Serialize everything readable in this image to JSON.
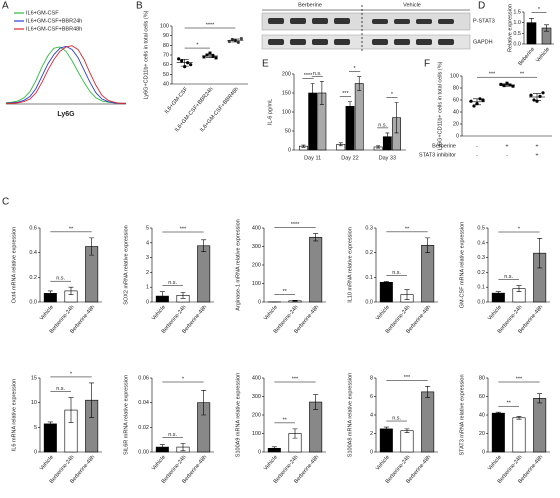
{
  "chart_data": [
    {
      "type": "line",
      "panel": "A",
      "x_label": "Ly6G",
      "x": [
        0,
        1,
        2,
        3,
        4,
        5,
        6,
        7,
        8,
        9,
        10,
        11,
        12,
        13,
        14,
        15,
        16,
        17,
        18,
        19,
        20
      ],
      "xlim": [
        0,
        20
      ],
      "ylim": [
        0,
        100
      ],
      "series": [
        {
          "name": "IL6+GM-CSF",
          "color": "#2fbf3a",
          "values": [
            2,
            3,
            5,
            10,
            20,
            38,
            60,
            78,
            90,
            92,
            85,
            70,
            52,
            35,
            20,
            10,
            5,
            3,
            2,
            1,
            1
          ]
        },
        {
          "name": "IL6+GM-CSF+BBR24h",
          "color": "#2a3fd8",
          "values": [
            1,
            2,
            3,
            6,
            12,
            25,
            45,
            65,
            80,
            90,
            93,
            88,
            75,
            55,
            35,
            18,
            8,
            4,
            2,
            1,
            1
          ]
        },
        {
          "name": "IL6+GM-CSF+BBR48h",
          "color": "#e0262b",
          "values": [
            1,
            1,
            2,
            4,
            8,
            18,
            35,
            55,
            72,
            85,
            92,
            94,
            88,
            72,
            50,
            30,
            14,
            6,
            3,
            1,
            1
          ]
        }
      ]
    },
    {
      "type": "dot",
      "panel": "B",
      "y_label": "Ly6G+CD11b+ cells in total cells (%)",
      "categories": [
        "IL6+GM-CSF",
        "IL6+GM-CSF+BBR24h",
        "IL6+GM-CSF+BBR48h"
      ],
      "points": [
        [
          66,
          64,
          58,
          62,
          60
        ],
        [
          68,
          70,
          72,
          69,
          67
        ],
        [
          84,
          86,
          85,
          83,
          87
        ]
      ],
      "means": [
        62,
        69,
        85
      ],
      "errors": [
        3.5,
        1.8,
        1.5
      ],
      "ylim": [
        40,
        100
      ],
      "yticks": [
        40,
        50,
        60,
        70,
        80,
        90,
        100
      ],
      "annotations": [
        "*",
        "****"
      ]
    },
    {
      "type": "bar",
      "panel": "D",
      "y_label": "Relative expression",
      "categories": [
        "Beberine",
        "Vehicle"
      ],
      "values": [
        1.0,
        0.75
      ],
      "errors": [
        0.2,
        0.15
      ],
      "colors": [
        "#000000",
        "#888888"
      ],
      "ylim": [
        0,
        1.5
      ],
      "yticks": [
        {
          "value": 0,
          "label": "0.0"
        },
        0.5,
        {
          "value": 1,
          "label": "1.0"
        },
        1.5
      ],
      "annotations": [
        "*"
      ]
    },
    {
      "type": "grouped-bar",
      "panel": "E",
      "y_label": "IL-6 pg/mL",
      "categories": [
        "Day 11",
        "Day 22",
        "Day 33"
      ],
      "series": [
        {
          "color": "#ffffff",
          "values": [
            10,
            15,
            8
          ],
          "errors": [
            3,
            4,
            3
          ]
        },
        {
          "color": "#000000",
          "values": [
            150,
            115,
            35
          ],
          "errors": [
            25,
            12,
            10
          ]
        },
        {
          "color": "#aaaaaa",
          "values": [
            150,
            175,
            85
          ],
          "errors": [
            30,
            18,
            40
          ]
        }
      ],
      "ylim": [
        0,
        200
      ],
      "yticks": [
        0,
        50,
        100,
        150,
        200
      ],
      "annotations": [
        [
          "****",
          "n.s."
        ],
        [
          "***",
          "*"
        ],
        [
          "n.s.",
          "*"
        ]
      ]
    },
    {
      "type": "dot",
      "panel": "F",
      "y_label": "Ly6G+CD11b+ cells in total cells (%)",
      "categories": [
        null,
        null,
        null
      ],
      "points": [
        [
          58,
          50,
          54,
          62,
          60
        ],
        [
          86,
          84,
          88,
          85,
          83
        ],
        [
          68,
          60,
          58,
          66,
          72
        ]
      ],
      "means": [
        57,
        85,
        65
      ],
      "errors": [
        5,
        2,
        6
      ],
      "ylim": [
        0,
        100
      ],
      "yticks": [
        0,
        20,
        40,
        60,
        80,
        100
      ],
      "annotations": [
        "***",
        "**"
      ],
      "conditions": [
        {
          "label": "Berberine",
          "signs": [
            "-",
            "+",
            "+"
          ]
        },
        {
          "label": "STAT3 inhibitor",
          "signs": [
            "-",
            "-",
            "+"
          ]
        }
      ]
    },
    {
      "type": "bar",
      "panel": "C",
      "y_label": "Oct4 mRNA relative expression",
      "categories": [
        "Vehicle",
        "Berberine-24h",
        "Berberine-48h"
      ],
      "colors": [
        "#000000",
        "#ffffff",
        "#888888"
      ],
      "values": [
        0.07,
        0.09,
        0.45
      ],
      "errors": [
        0.02,
        0.03,
        0.07
      ],
      "ylim": [
        0,
        0.6
      ],
      "yticks": [
        {
          "value": 0,
          "label": "0.0"
        },
        0.2,
        0.4,
        0.6
      ],
      "annotations": [
        "n.s.",
        "**"
      ]
    },
    {
      "type": "bar",
      "y_label": "SOX2 mRNA relative expression",
      "categories": [
        "Vehicle",
        "Berberine-24h",
        "Berberine-48h"
      ],
      "colors": [
        "#000000",
        "#ffffff",
        "#888888"
      ],
      "values": [
        0.4,
        0.45,
        3.8
      ],
      "errors": [
        0.3,
        0.2,
        0.4
      ],
      "ylim": [
        0,
        5
      ],
      "yticks": [
        0,
        1,
        2,
        3,
        4,
        5
      ],
      "annotations": [
        "n.s.",
        "***"
      ]
    },
    {
      "type": "bar",
      "y_label": "Arginase-1 mRNA relative expression",
      "categories": [
        "Vehicle",
        "Berberine-24h",
        "Berberine-48h"
      ],
      "colors": [
        "#000000",
        "#ffffff",
        "#888888"
      ],
      "values": [
        0.8,
        6.5,
        350
      ],
      "errors": [
        0.3,
        2.5,
        20
      ],
      "ylim": [
        0,
        400
      ],
      "yticks": [
        0,
        100,
        200,
        300,
        400
      ],
      "annotations": [
        "**",
        "****"
      ]
    },
    {
      "type": "bar",
      "y_label": "IL10 mRNA relative expression",
      "categories": [
        "Vehicle",
        "Berberine-24h",
        "Berberine-48h"
      ],
      "colors": [
        "#000000",
        "#ffffff",
        "#888888"
      ],
      "values": [
        0.08,
        0.03,
        0.23
      ],
      "errors": [
        0.003,
        0.02,
        0.03
      ],
      "ylim": [
        0,
        0.3
      ],
      "yticks": [
        {
          "value": 0,
          "label": "0.0"
        },
        0.1,
        0.2,
        0.3
      ],
      "annotations": [
        "n.s.",
        "**"
      ]
    },
    {
      "type": "bar",
      "y_label": "GM-CSF mRNA relative expression",
      "categories": [
        "Vehicle",
        "Berberine-24h",
        "Berberine-48h"
      ],
      "colors": [
        "#000000",
        "#ffffff",
        "#888888"
      ],
      "values": [
        0.06,
        0.09,
        0.33
      ],
      "errors": [
        0.01,
        0.02,
        0.1
      ],
      "ylim": [
        0,
        0.5
      ],
      "yticks": [
        {
          "value": 0,
          "label": "0.0"
        },
        0.1,
        0.2,
        0.3,
        0.4,
        0.5
      ],
      "annotations": [
        "n.s.",
        "*"
      ]
    },
    {
      "type": "bar",
      "y_label": "IL6 mRNA relative expression",
      "categories": [
        "Vehicle",
        "Berberine-24h",
        "Berberine-48h"
      ],
      "colors": [
        "#000000",
        "#ffffff",
        "#888888"
      ],
      "values": [
        5.7,
        8.5,
        10.5
      ],
      "errors": [
        0.4,
        2.5,
        3.5
      ],
      "ylim": [
        0,
        15
      ],
      "yticks": [
        0,
        5,
        10,
        15
      ],
      "annotations": [
        "n.s.",
        "*"
      ]
    },
    {
      "type": "bar",
      "y_label": "SIL6R mRNA relative expression",
      "categories": [
        "Vehicle",
        "Berberine-24h",
        "Berberine-48h"
      ],
      "colors": [
        "#000000",
        "#ffffff",
        "#888888"
      ],
      "values": [
        0.004,
        0.004,
        0.04
      ],
      "errors": [
        0.002,
        0.003,
        0.01
      ],
      "ylim": [
        0,
        0.06
      ],
      "yticks": [
        {
          "value": 0,
          "label": "0.00"
        },
        0.02,
        0.04,
        0.06
      ],
      "annotations": [
        "n.s.",
        "*"
      ]
    },
    {
      "type": "bar",
      "y_label": "S100A9 mRNA relative expression",
      "categories": [
        "Vehicle",
        "Berberine-24h",
        "Berberine-48h"
      ],
      "colors": [
        "#000000",
        "#ffffff",
        "#888888"
      ],
      "values": [
        20,
        100,
        270
      ],
      "errors": [
        8,
        25,
        40
      ],
      "ylim": [
        0,
        400
      ],
      "yticks": [
        0,
        100,
        200,
        300,
        400
      ],
      "annotations": [
        "**",
        "***"
      ]
    },
    {
      "type": "bar",
      "y_label": "S100A8 mRNA relative expression",
      "categories": [
        "Vehicle",
        "Berberine-24h",
        "Berberine-48h"
      ],
      "colors": [
        "#000000",
        "#ffffff",
        "#888888"
      ],
      "values": [
        2.5,
        2.3,
        6.5
      ],
      "errors": [
        0.2,
        0.2,
        0.6
      ],
      "ylim": [
        0,
        8
      ],
      "yticks": [
        0,
        2,
        4,
        6,
        8
      ],
      "annotations": [
        "n.s.",
        "***"
      ]
    },
    {
      "type": "bar",
      "y_label": "STAT3 mRNA relative expression",
      "categories": [
        "Vehicle",
        "Berberine-24h",
        "Berberine-48h"
      ],
      "colors": [
        "#000000",
        "#ffffff",
        "#888888"
      ],
      "values": [
        42,
        37,
        58
      ],
      "errors": [
        1,
        1.5,
        5
      ],
      "ylim": [
        0,
        80
      ],
      "yticks": [
        0,
        20,
        40,
        60,
        80
      ],
      "annotations": [
        "**",
        "***"
      ]
    }
  ],
  "blot": {
    "groups": [
      "Berberine",
      "Vehicle"
    ],
    "bands": [
      "P-STAT3",
      "GAPDH"
    ]
  }
}
